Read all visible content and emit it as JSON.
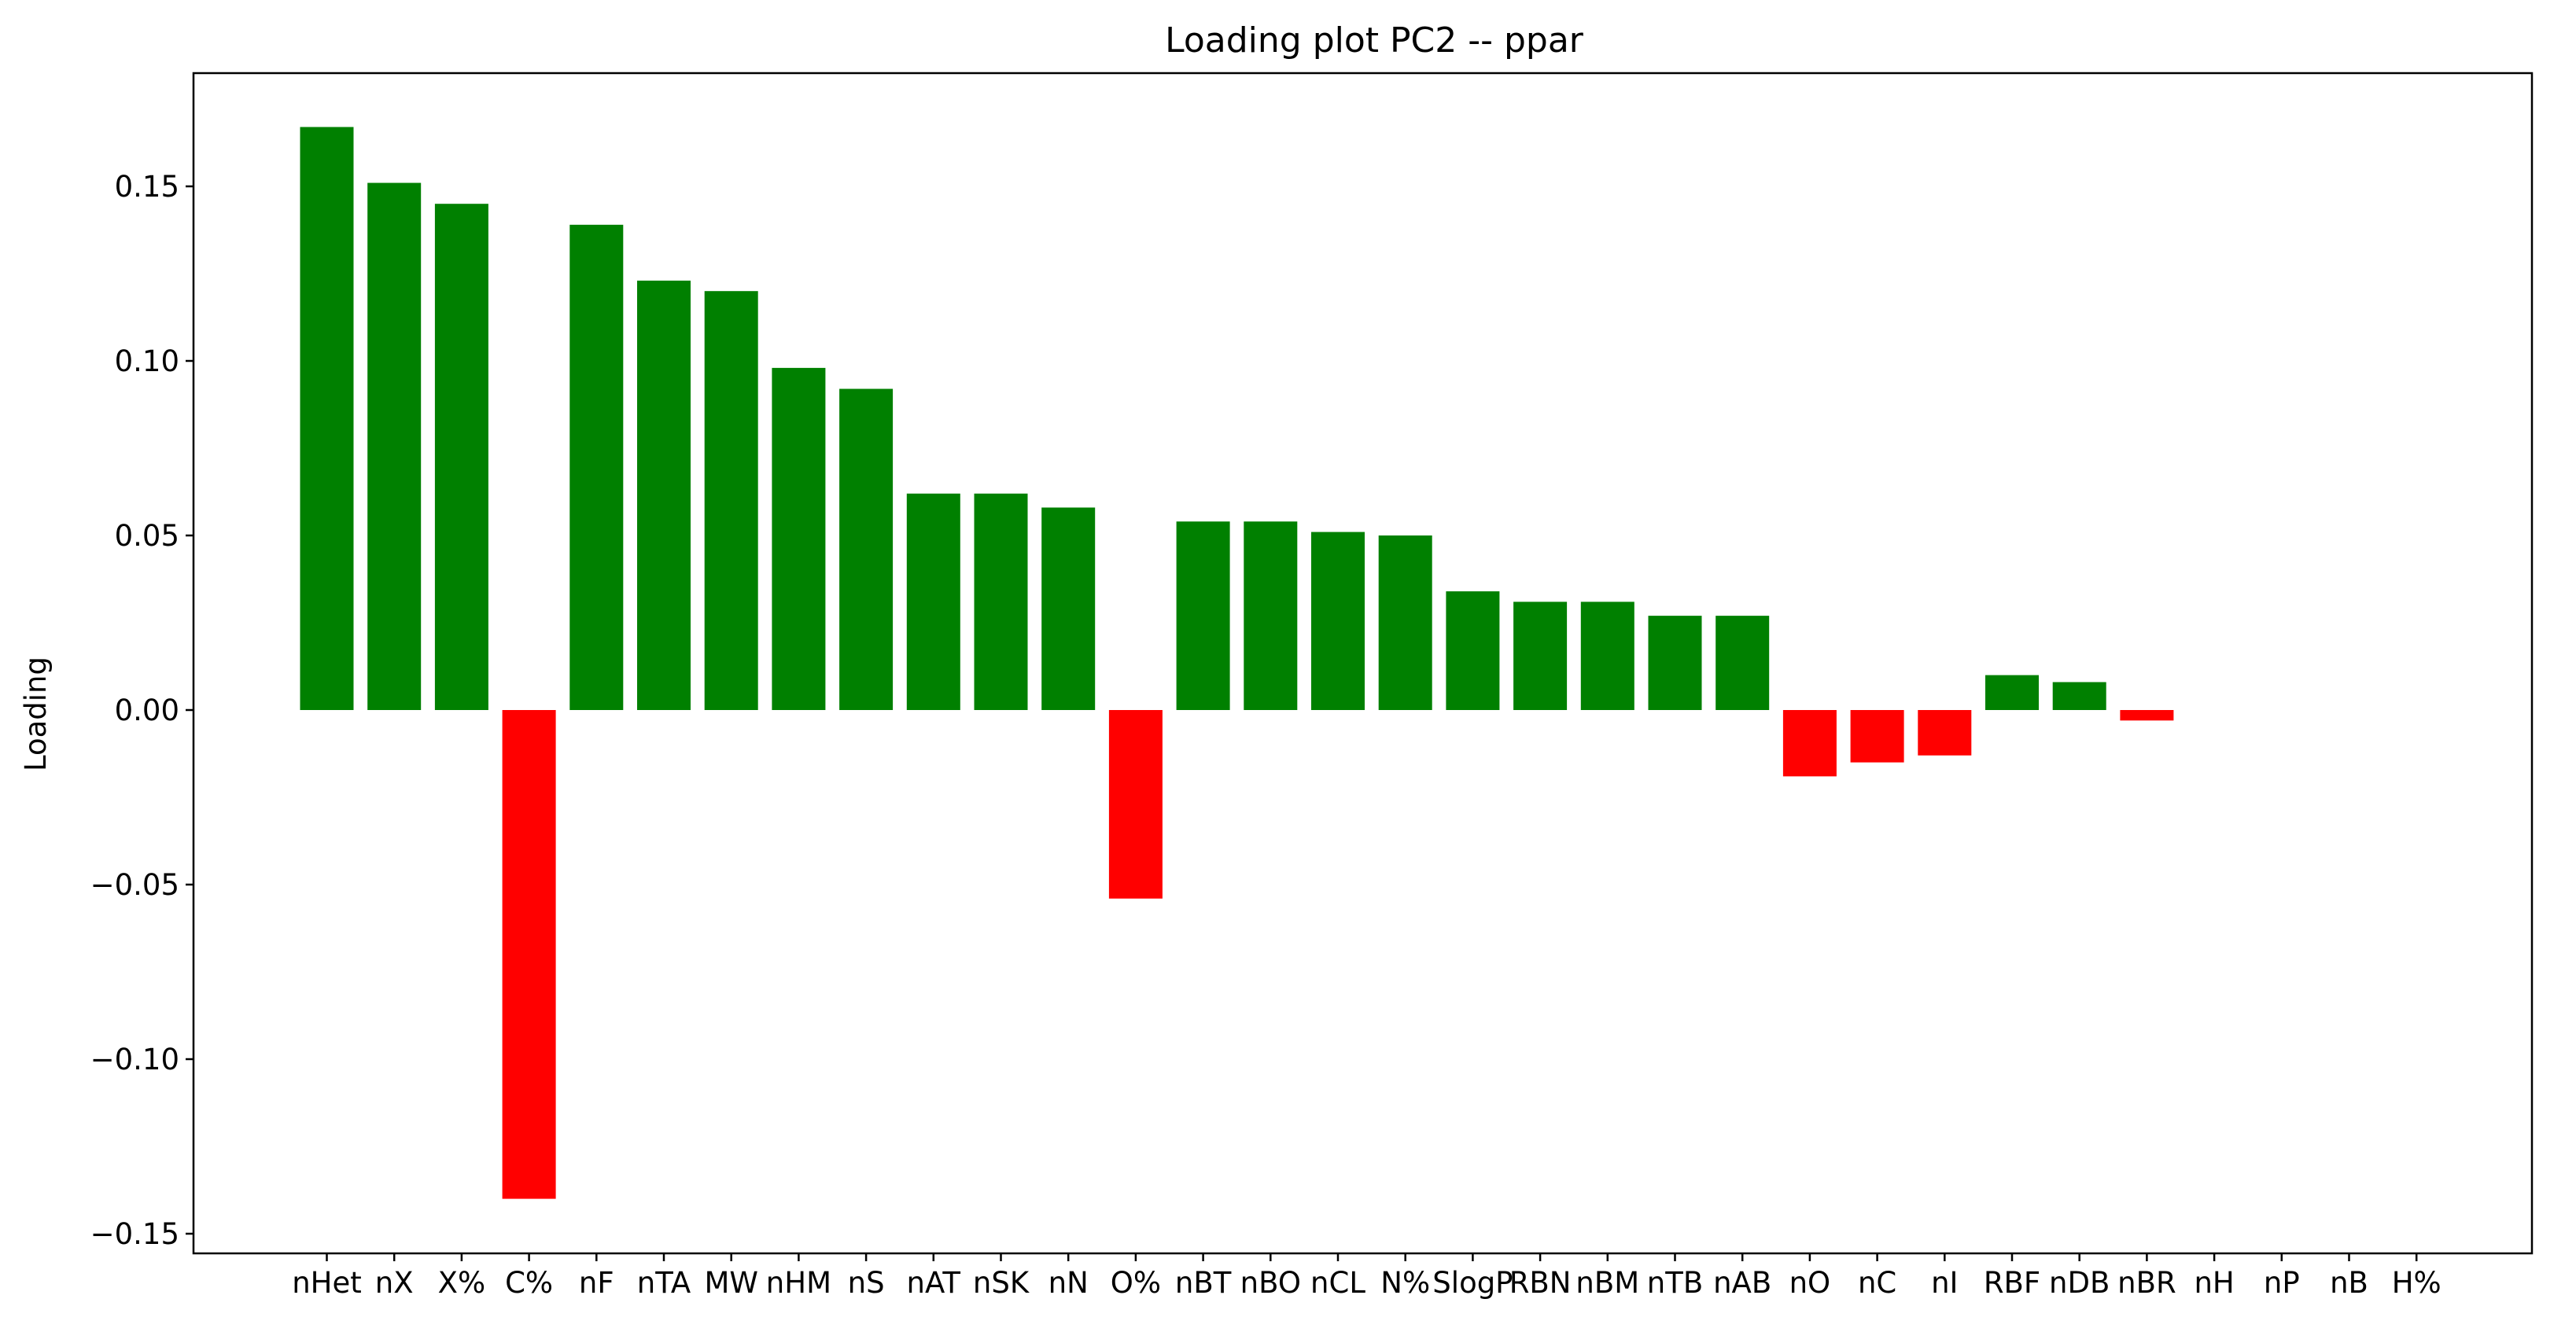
{
  "chart_data": {
    "type": "bar",
    "title": "Loading plot PC2 -- ppar",
    "xlabel": "",
    "ylabel": "Loading",
    "ylim": [
      -0.155,
      0.182
    ],
    "yticks": [
      -0.15,
      -0.1,
      -0.05,
      0.0,
      0.05,
      0.1,
      0.15
    ],
    "ytick_labels": [
      "−0.15",
      "−0.10",
      "−0.05",
      "0.00",
      "0.05",
      "0.10",
      "0.15"
    ],
    "categories": [
      "nHet",
      "nX",
      "X%",
      "C%",
      "nF",
      "nTA",
      "MW",
      "nHM",
      "nS",
      "nAT",
      "nSK",
      "nN",
      "O%",
      "nBT",
      "nBO",
      "nCL",
      "N%",
      "SlogP",
      "RBN",
      "nBM",
      "nTB",
      "nAB",
      "nO",
      "nC",
      "nI",
      "RBF",
      "nDB",
      "nBR",
      "nH",
      "nP",
      "nB",
      "H%"
    ],
    "values": [
      0.167,
      0.151,
      0.145,
      -0.14,
      0.139,
      0.123,
      0.12,
      0.098,
      0.092,
      0.062,
      0.062,
      0.058,
      -0.054,
      0.054,
      0.054,
      0.051,
      0.05,
      0.034,
      0.031,
      0.031,
      0.027,
      0.027,
      -0.019,
      -0.015,
      -0.013,
      0.01,
      0.008,
      -0.003,
      0.0,
      0.0,
      0.0,
      0.0
    ],
    "colors": {
      "positive": "#008000",
      "negative": "#ff0000"
    },
    "grid": false,
    "legend": "none"
  }
}
